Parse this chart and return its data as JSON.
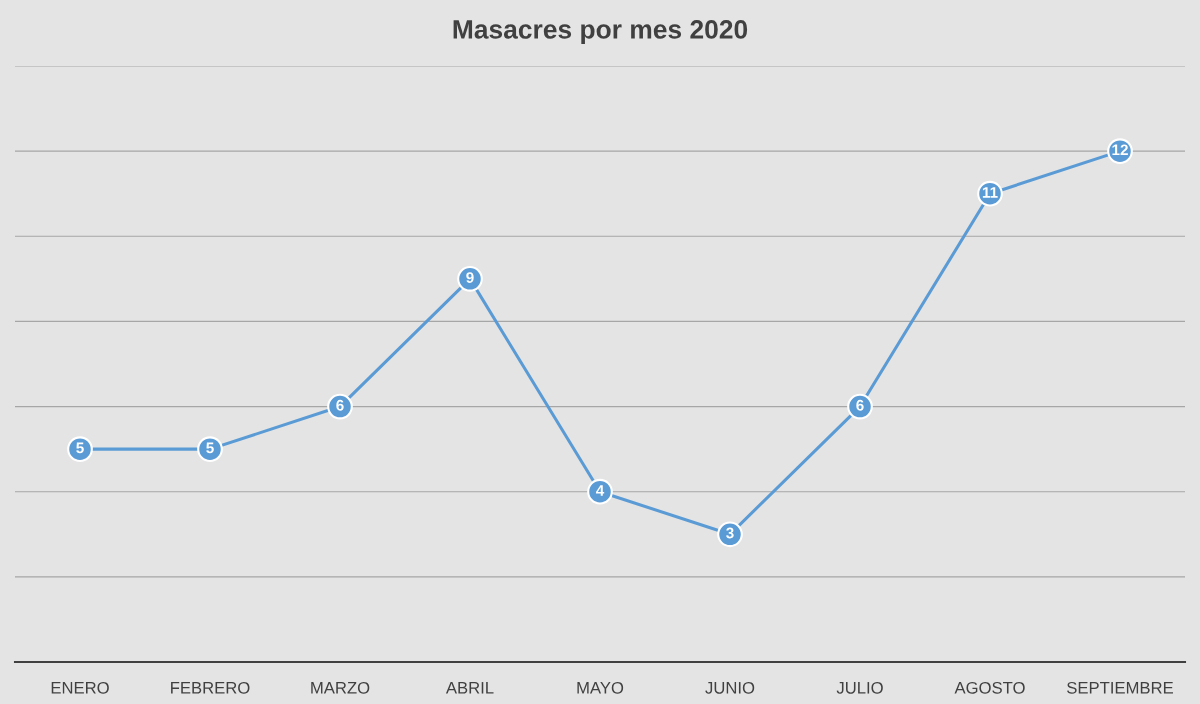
{
  "chart_data": {
    "type": "line",
    "title": "Masacres por mes 2020",
    "categories": [
      "ENERO",
      "FEBRERO",
      "MARZO",
      "ABRIL",
      "MAYO",
      "JUNIO",
      "JULIO",
      "AGOSTO",
      "SEPTIEMBRE"
    ],
    "series": [
      {
        "color": "#5b9bd5",
        "values": [
          5,
          5,
          6,
          9,
          4,
          3,
          6,
          11,
          12
        ]
      }
    ],
    "ylim": [
      0,
      14
    ],
    "yticks": [
      {
        "value": 0,
        "label": null
      },
      {
        "value": 2,
        "label": null
      },
      {
        "value": 4,
        "label": null
      },
      {
        "value": 6,
        "label": null
      },
      {
        "value": 8,
        "label": null
      },
      {
        "value": 10,
        "label": null
      },
      {
        "value": 12,
        "label": null
      },
      {
        "value": 14,
        "label": null
      }
    ],
    "grid": "y",
    "legend": false,
    "marker": "circle",
    "line_style": "solid",
    "data_labels": true,
    "tick_labels": "x"
  }
}
